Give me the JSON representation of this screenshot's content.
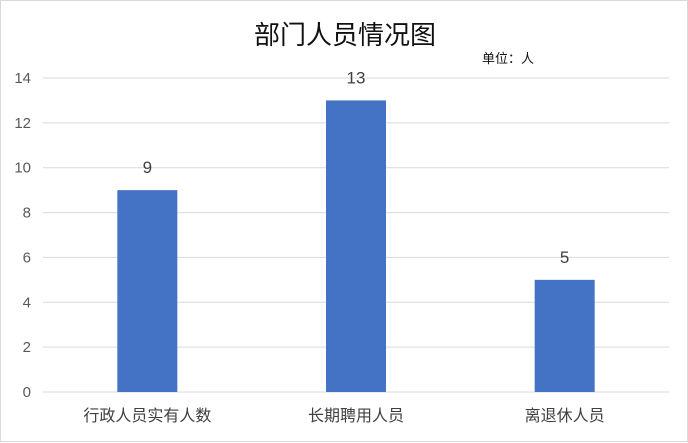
{
  "chart_data": {
    "type": "bar",
    "title": "部门人员情况图",
    "unit_note": "单位：人",
    "categories": [
      "行政人员实有人数",
      "长期聘用人员",
      "离退休人员"
    ],
    "values": [
      9,
      13,
      5
    ],
    "data_labels": [
      "9",
      "13",
      "5"
    ],
    "y_ticks": [
      "0",
      "2",
      "4",
      "6",
      "8",
      "10",
      "12",
      "14"
    ],
    "ylim": [
      0,
      14
    ],
    "y_step": 2,
    "grid": true,
    "legend": "none",
    "bar_color": "#4472C4",
    "grid_color": "#d9d9d9"
  }
}
